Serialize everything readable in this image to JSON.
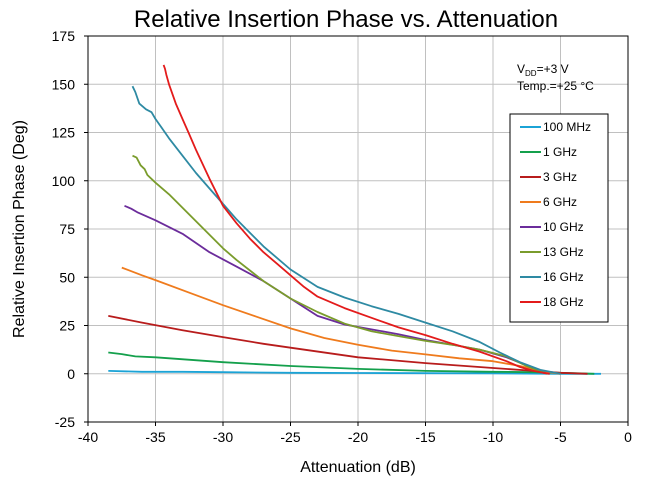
{
  "chart_data": {
    "type": "line",
    "title": "Relative Insertion Phase vs. Attenuation",
    "xlabel": "Attenuation (dB)",
    "ylabel": "Relative Insertion Phase (Deg)",
    "xlim": [
      -40,
      0
    ],
    "ylim": [
      -25,
      175
    ],
    "xticks": [
      -40,
      -35,
      -30,
      -25,
      -20,
      -15,
      -10,
      -5,
      0
    ],
    "yticks": [
      -25,
      0,
      25,
      50,
      75,
      100,
      125,
      150,
      175
    ],
    "grid": true,
    "legend_position": "right",
    "annotation": {
      "vdd_prefix": "V",
      "vdd_sub": "DD",
      "vdd_value": "=+3 V",
      "temp": "Temp.=+25 °C"
    },
    "series": [
      {
        "name": "100 MHz",
        "color": "#1ba3d6",
        "x": [
          -38.5,
          -36,
          -33,
          -30,
          -25,
          -20,
          -15,
          -10,
          -5,
          -2
        ],
        "y": [
          1.5,
          1,
          1,
          0.8,
          0.5,
          0.4,
          0.3,
          0.2,
          0,
          0
        ]
      },
      {
        "name": "1 GHz",
        "color": "#14a04c",
        "x": [
          -38.5,
          -37.5,
          -36.5,
          -35,
          -30,
          -25,
          -20,
          -15,
          -10,
          -7,
          -4,
          -2.5
        ],
        "y": [
          11,
          10.2,
          9,
          8.5,
          6,
          4,
          2.5,
          1.5,
          1,
          0.8,
          0.3,
          0
        ]
      },
      {
        "name": "3 GHz",
        "color": "#b81c1c",
        "x": [
          -38.5,
          -36,
          -33,
          -30,
          -27,
          -25,
          -20,
          -15,
          -10,
          -7,
          -5,
          -3
        ],
        "y": [
          30,
          26.5,
          22.5,
          19,
          15.5,
          13.5,
          8.5,
          5.5,
          3,
          1.5,
          0.5,
          0
        ]
      },
      {
        "name": "6 GHz",
        "color": "#ef7b1d",
        "x": [
          -37.5,
          -36,
          -35,
          -32.5,
          -30,
          -27.5,
          -25,
          -22.5,
          -20,
          -17.5,
          -15,
          -12.5,
          -10,
          -8,
          -6.5,
          -5
        ],
        "y": [
          55,
          51,
          48.5,
          42,
          35.5,
          29.5,
          23.5,
          18.5,
          15,
          12,
          10,
          8,
          6.5,
          4,
          1.5,
          0
        ]
      },
      {
        "name": "10 GHz",
        "color": "#6b2c9b",
        "x": [
          -37.3,
          -36.8,
          -36.3,
          -35,
          -33,
          -31,
          -29,
          -27,
          -25,
          -23,
          -21,
          -19,
          -17,
          -15,
          -13,
          -11,
          -9,
          -7,
          -6
        ],
        "y": [
          87,
          85.5,
          83.5,
          79.5,
          72.5,
          63,
          55.5,
          48,
          39,
          30,
          25.5,
          23,
          20.5,
          17.5,
          15,
          12.5,
          8.5,
          3,
          0
        ]
      },
      {
        "name": "13 GHz",
        "color": "#7a9c2c",
        "x": [
          -36.7,
          -36.4,
          -36.1,
          -35.8,
          -35.6,
          -35,
          -34,
          -33,
          -32,
          -31,
          -30,
          -29,
          -27,
          -25,
          -23,
          -21,
          -19,
          -17,
          -15,
          -13,
          -11,
          -9,
          -7.5,
          -6
        ],
        "y": [
          113,
          112,
          108,
          106,
          103,
          99,
          93,
          86,
          79,
          72,
          65,
          59,
          48,
          39,
          32,
          26,
          22,
          19.5,
          17,
          15,
          12.5,
          9,
          4,
          0
        ]
      },
      {
        "name": "16 GHz",
        "color": "#2e8aa3",
        "x": [
          -36.7,
          -36.5,
          -36.2,
          -35.7,
          -35.3,
          -35,
          -34.5,
          -34,
          -33,
          -32,
          -31,
          -30,
          -29,
          -28,
          -27,
          -25,
          -23,
          -21,
          -19,
          -17,
          -15,
          -13,
          -11,
          -9.5,
          -8,
          -6.5,
          -5
        ],
        "y": [
          149,
          146,
          140,
          137,
          135.5,
          132,
          127,
          122,
          113,
          104,
          96,
          88,
          80,
          73,
          66,
          54,
          45,
          39.5,
          35,
          31,
          26.5,
          22,
          16.5,
          11,
          6,
          2,
          0
        ]
      },
      {
        "name": "18 GHz",
        "color": "#e31b1b",
        "x": [
          -34.4,
          -34.3,
          -34.2,
          -34,
          -33.5,
          -33,
          -32.5,
          -32,
          -31,
          -30,
          -29,
          -28,
          -27,
          -26,
          -25,
          -24,
          -23,
          -21,
          -19,
          -17,
          -15,
          -13,
          -11,
          -9,
          -8,
          -7,
          -6.3,
          -5.8
        ],
        "y": [
          160,
          158,
          155,
          150,
          140,
          132,
          124,
          116,
          101,
          87,
          78,
          70,
          63,
          57,
          51,
          45,
          40,
          34,
          29,
          24,
          20,
          15.5,
          11.5,
          6.5,
          3.5,
          1.5,
          0.5,
          0
        ]
      }
    ]
  }
}
